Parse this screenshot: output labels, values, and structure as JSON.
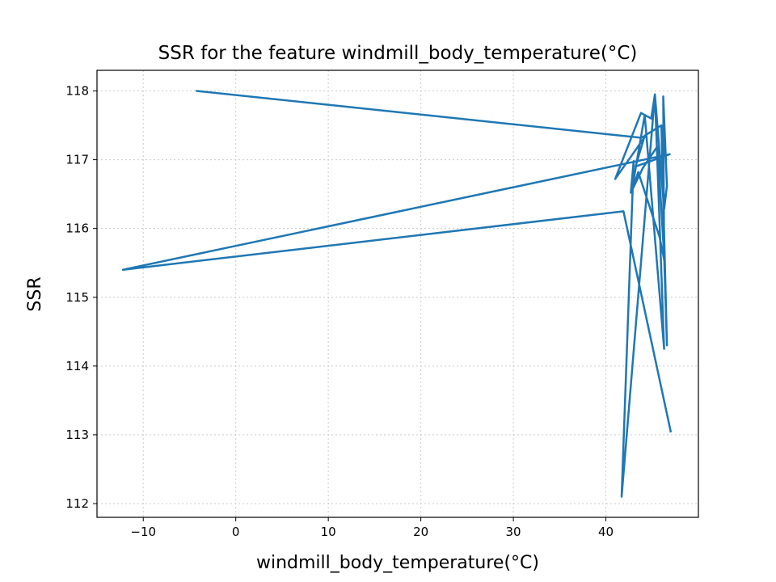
{
  "chart_data": {
    "type": "line",
    "title": "SSR for the feature windmill_body_temperature(°C)",
    "xlabel": "windmill_body_temperature(°C)",
    "ylabel": "SSR",
    "xlim": [
      -15,
      50
    ],
    "ylim": [
      111.8,
      118.3
    ],
    "xticks": [
      -10,
      0,
      10,
      20,
      30,
      40
    ],
    "xtick_labels": [
      "−10",
      "0",
      "10",
      "20",
      "30",
      "40"
    ],
    "yticks": [
      112,
      113,
      114,
      115,
      116,
      117,
      118
    ],
    "ytick_labels": [
      "112",
      "113",
      "114",
      "115",
      "116",
      "117",
      "118"
    ],
    "grid": true,
    "series": [
      {
        "color": "#1f77b4",
        "x": [
          -4.2,
          43.8,
          44.3,
          41.0,
          43.8,
          44.9,
          45.3,
          46.3,
          46.6,
          46.2,
          46.3,
          45.8,
          43.5,
          42.7,
          43.0,
          41.7,
          45.3,
          46.3,
          44.2,
          42.8,
          44.0,
          45.6,
          46.3,
          46.6,
          46.0,
          44.2,
          43.2,
          46.9,
          -12.2,
          41.9,
          47.0
        ]
      }
    ]
  },
  "series_y": [
    118.0,
    117.32,
    117.35,
    116.72,
    117.68,
    117.6,
    117.95,
    116.28,
    116.62,
    117.92,
    115.55,
    115.88,
    116.82,
    116.52,
    116.98,
    112.1,
    117.95,
    114.25,
    117.65,
    116.55,
    116.88,
    117.2,
    115.6,
    114.3,
    117.5,
    117.35,
    116.9,
    117.08,
    115.4,
    116.25,
    113.05
  ]
}
